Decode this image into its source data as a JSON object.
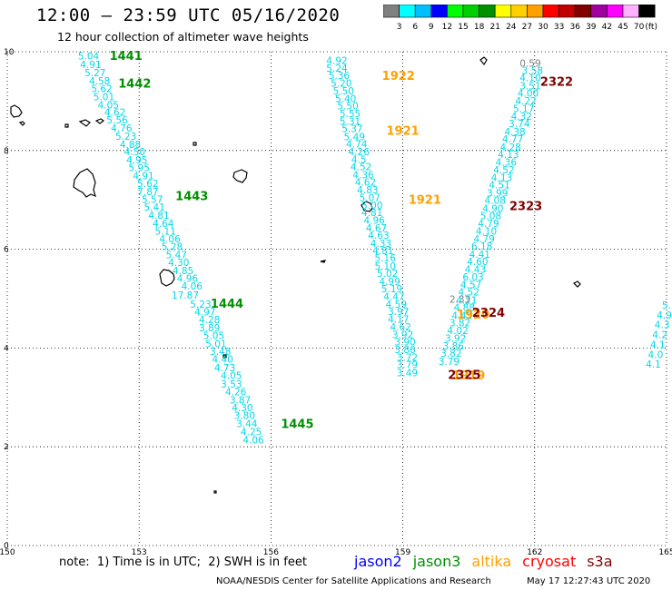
{
  "header": {
    "title": "12:00 – 23:59 UTC 05/16/2020",
    "subtitle": "12 hour collection of altimeter wave heights"
  },
  "colorbar": {
    "colors": [
      "#808080",
      "#00ffff",
      "#00bfff",
      "#0000ff",
      "#00ff00",
      "#00d000",
      "#009000",
      "#ffff00",
      "#ffd000",
      "#ffa000",
      "#ff0000",
      "#c00000",
      "#800000",
      "#a000a0",
      "#ff00ff",
      "#ffb0ff",
      "#000000"
    ],
    "labels": [
      "3",
      "6",
      "9",
      "12",
      "15",
      "18",
      "21",
      "24",
      "27",
      "30",
      "33",
      "36",
      "39",
      "42",
      "45",
      "70",
      "(ft)"
    ]
  },
  "axes": {
    "x_ticks": [
      "150",
      "153",
      "156",
      "159",
      "162",
      "165"
    ],
    "y_ticks": [
      "0",
      "2",
      "4",
      "6",
      "8",
      "10"
    ],
    "xlim": [
      150,
      165
    ],
    "ylim": [
      0,
      10
    ]
  },
  "tracks": [
    {
      "color": "#00d8e8",
      "points": [
        [
          151.85,
          9.84,
          "5.04"
        ],
        [
          151.9,
          9.67,
          "4.91"
        ],
        [
          152.0,
          9.5,
          "5.27"
        ],
        [
          152.1,
          9.34,
          "4.58"
        ],
        [
          152.15,
          9.18,
          "5.62"
        ],
        [
          152.2,
          9.02,
          "5.01"
        ],
        [
          152.3,
          8.85,
          "4.05"
        ],
        [
          152.45,
          8.7,
          "4.62"
        ],
        [
          152.5,
          8.55,
          "5.56"
        ],
        [
          152.6,
          8.38,
          "4.76"
        ],
        [
          152.7,
          8.22,
          "5.23"
        ],
        [
          152.8,
          8.05,
          "4.88"
        ],
        [
          152.9,
          7.9,
          "4.50"
        ],
        [
          152.95,
          7.74,
          "4.95"
        ],
        [
          153.0,
          7.58,
          "5.95"
        ],
        [
          153.1,
          7.42,
          "4.91"
        ],
        [
          153.2,
          7.26,
          "5.62"
        ],
        [
          153.2,
          7.1,
          "7.87"
        ],
        [
          153.3,
          6.94,
          "5.57"
        ],
        [
          153.35,
          6.78,
          "5.41"
        ],
        [
          153.45,
          6.62,
          "4.81"
        ],
        [
          153.55,
          6.45,
          "4.64"
        ],
        [
          153.6,
          6.3,
          "5.11"
        ],
        [
          153.7,
          6.14,
          "4.06"
        ],
        [
          153.75,
          5.98,
          "5.28"
        ],
        [
          153.85,
          5.82,
          "5.47"
        ],
        [
          153.9,
          5.66,
          "4.30"
        ],
        [
          154.0,
          5.5,
          "4.85"
        ],
        [
          154.1,
          5.34,
          "4.96"
        ],
        [
          154.2,
          5.18,
          "4.06"
        ],
        [
          154.05,
          5.0,
          "17.87"
        ],
        [
          154.4,
          4.82,
          "5.23"
        ],
        [
          154.5,
          4.66,
          "4.97"
        ],
        [
          154.6,
          4.5,
          "4.28"
        ],
        [
          154.6,
          4.34,
          "3.89"
        ],
        [
          154.7,
          4.18,
          "5.05"
        ],
        [
          154.75,
          4.02,
          "5.01"
        ],
        [
          154.85,
          3.86,
          "3.48"
        ],
        [
          154.9,
          3.7,
          "4.40"
        ],
        [
          154.95,
          3.53,
          "4.73"
        ],
        [
          155.1,
          3.37,
          "4.05"
        ],
        [
          155.1,
          3.2,
          "3.53"
        ],
        [
          155.2,
          3.04,
          "4.26"
        ],
        [
          155.3,
          2.88,
          "3.87"
        ],
        [
          155.35,
          2.72,
          "4.30"
        ],
        [
          155.4,
          2.56,
          "3.80"
        ],
        [
          155.45,
          2.4,
          "3.44"
        ],
        [
          155.55,
          2.23,
          "4.25"
        ],
        [
          155.6,
          2.07,
          "4.06"
        ]
      ]
    },
    {
      "color": "#00d8e8",
      "points": [
        [
          157.5,
          9.75,
          "4.92"
        ],
        [
          157.5,
          9.6,
          "5.24"
        ],
        [
          157.55,
          9.45,
          "5.36"
        ],
        [
          157.6,
          9.29,
          "5.20"
        ],
        [
          157.65,
          9.14,
          "5.50"
        ],
        [
          157.7,
          8.98,
          "5.40"
        ],
        [
          157.75,
          8.83,
          "5.50"
        ],
        [
          157.8,
          8.68,
          "5.55"
        ],
        [
          157.8,
          8.52,
          "5.31"
        ],
        [
          157.85,
          8.37,
          "5.37"
        ],
        [
          157.9,
          8.21,
          "5.49"
        ],
        [
          157.95,
          8.06,
          "4.74"
        ],
        [
          158.0,
          7.9,
          "4.26"
        ],
        [
          158.0,
          7.75,
          "4.5"
        ],
        [
          158.05,
          7.6,
          "4.52"
        ],
        [
          158.1,
          7.44,
          "4.36"
        ],
        [
          158.15,
          7.29,
          "4.62"
        ],
        [
          158.2,
          7.13,
          "4.83"
        ],
        [
          158.25,
          6.98,
          "5.07"
        ],
        [
          158.3,
          6.82,
          "5.00"
        ],
        [
          158.3,
          6.67,
          "4.81"
        ],
        [
          158.35,
          6.52,
          "4.96"
        ],
        [
          158.4,
          6.36,
          "4.67"
        ],
        [
          158.45,
          6.21,
          "4.63"
        ],
        [
          158.5,
          6.05,
          "4.33"
        ],
        [
          158.55,
          5.9,
          "4.81"
        ],
        [
          158.6,
          5.75,
          "5.16"
        ],
        [
          158.6,
          5.59,
          "5.10"
        ],
        [
          158.65,
          5.44,
          "5.02"
        ],
        [
          158.7,
          5.28,
          "4.99"
        ],
        [
          158.75,
          5.13,
          "5.19"
        ],
        [
          158.8,
          4.97,
          "4.47"
        ],
        [
          158.85,
          4.82,
          "4.59"
        ],
        [
          158.9,
          4.67,
          "3.97"
        ],
        [
          158.9,
          4.51,
          "4.17"
        ],
        [
          158.95,
          4.36,
          "4.62"
        ],
        [
          159.0,
          4.2,
          "3.92"
        ],
        [
          159.05,
          4.05,
          "3.90"
        ],
        [
          159.05,
          3.9,
          "3.86"
        ],
        [
          159.1,
          3.74,
          "3.72"
        ],
        [
          159.1,
          3.59,
          "3.79"
        ],
        [
          159.1,
          3.43,
          "3.49"
        ]
      ]
    },
    {
      "color": "#00d8e8",
      "points": [
        [
          161.95,
          9.55,
          "3.58"
        ],
        [
          161.9,
          9.4,
          "4.10"
        ],
        [
          161.9,
          9.24,
          "3.51"
        ],
        [
          161.85,
          9.09,
          "4.00"
        ],
        [
          161.8,
          8.93,
          "4.22"
        ],
        [
          161.75,
          8.78,
          "5.17"
        ],
        [
          161.7,
          8.62,
          "4.32"
        ],
        [
          161.65,
          8.47,
          "3.74"
        ],
        [
          161.55,
          8.31,
          "4.38"
        ],
        [
          161.5,
          8.16,
          "4.77"
        ],
        [
          161.45,
          8.0,
          "4.28"
        ],
        [
          161.4,
          7.85,
          "4.13"
        ],
        [
          161.35,
          7.69,
          "4.36"
        ],
        [
          161.3,
          7.54,
          "4.52"
        ],
        [
          161.25,
          7.38,
          "4.13"
        ],
        [
          161.2,
          7.23,
          "4.51"
        ],
        [
          161.15,
          7.07,
          "3.99"
        ],
        [
          161.1,
          6.92,
          "4.08"
        ],
        [
          161.05,
          6.76,
          "4.90"
        ],
        [
          161.0,
          6.61,
          "5.08"
        ],
        [
          160.95,
          6.45,
          "4.79"
        ],
        [
          160.9,
          6.3,
          "4.10"
        ],
        [
          160.85,
          6.14,
          "4.79"
        ],
        [
          160.8,
          5.99,
          "6.18"
        ],
        [
          160.75,
          5.83,
          "4.41"
        ],
        [
          160.7,
          5.68,
          "4.60"
        ],
        [
          160.65,
          5.52,
          "4.43"
        ],
        [
          160.6,
          5.37,
          "6.03"
        ],
        [
          160.55,
          5.21,
          "4.57"
        ],
        [
          160.5,
          5.06,
          "4.52"
        ],
        [
          160.45,
          4.9,
          "4.21"
        ],
        [
          160.4,
          4.75,
          "4.88"
        ],
        [
          160.35,
          4.59,
          "4.45"
        ],
        [
          160.3,
          4.44,
          "3.82"
        ],
        [
          160.25,
          4.28,
          "4.02"
        ],
        [
          160.2,
          4.13,
          "3.92"
        ],
        [
          160.15,
          3.97,
          "3.86"
        ],
        [
          160.1,
          3.82,
          "3.82"
        ],
        [
          160.05,
          3.66,
          "3.79"
        ]
      ]
    },
    {
      "color": "#00d8e8",
      "points": [
        [
          165.0,
          4.8,
          "5."
        ],
        [
          164.95,
          4.6,
          "4.9"
        ],
        [
          164.9,
          4.4,
          "4.3"
        ],
        [
          164.85,
          4.2,
          "4.2"
        ],
        [
          164.8,
          4.0,
          "4.1"
        ],
        [
          164.75,
          3.8,
          "4.0"
        ],
        [
          164.7,
          3.6,
          "4.1"
        ]
      ]
    },
    {
      "color": "#808080",
      "points": [
        [
          161.9,
          9.7,
          "0.59"
        ],
        [
          160.3,
          4.92,
          "2.33"
        ]
      ]
    }
  ],
  "pass_labels": [
    {
      "text": "1441",
      "lon": 152.7,
      "lat": 9.83,
      "color": "#009000"
    },
    {
      "text": "1442",
      "lon": 152.9,
      "lat": 9.27,
      "color": "#009000"
    },
    {
      "text": "1443",
      "lon": 154.2,
      "lat": 6.99,
      "color": "#009000"
    },
    {
      "text": "1444",
      "lon": 155.0,
      "lat": 4.82,
      "color": "#009000"
    },
    {
      "text": "1445",
      "lon": 156.6,
      "lat": 2.38,
      "color": "#009000"
    },
    {
      "text": "1922",
      "lon": 158.9,
      "lat": 9.43,
      "color": "#ffa000"
    },
    {
      "text": "1921",
      "lon": 159.0,
      "lat": 8.32,
      "color": "#ffa000"
    },
    {
      "text": "1921",
      "lon": 159.5,
      "lat": 6.92,
      "color": "#ffa000"
    },
    {
      "text": "1920",
      "lon": 160.6,
      "lat": 4.6,
      "color": "#ffa000"
    },
    {
      "text": "1919",
      "lon": 160.5,
      "lat": 3.36,
      "color": "#ffa000"
    },
    {
      "text": "2322",
      "lon": 162.5,
      "lat": 9.31,
      "color": "#800000"
    },
    {
      "text": "2323",
      "lon": 161.8,
      "lat": 6.79,
      "color": "#800000"
    },
    {
      "text": "2324",
      "lon": 160.95,
      "lat": 4.63,
      "color": "#800000"
    },
    {
      "text": "2325",
      "lon": 160.4,
      "lat": 3.37,
      "color": "#800000"
    }
  ],
  "footer": {
    "note": "note:  1) Time is in UTC;  2) SWH is in feet",
    "legend": [
      {
        "name": "jason2",
        "color": "#0000ff"
      },
      {
        "name": "jason3",
        "color": "#009000"
      },
      {
        "name": "altika",
        "color": "#ffa000"
      },
      {
        "name": "cryosat",
        "color": "#ff0000"
      },
      {
        "name": "s3a",
        "color": "#800000"
      }
    ],
    "credit": "NOAA/NESDIS Center for Satellite Applications and Research",
    "timestamp": "May 17 12:27:43 UTC 2020"
  }
}
